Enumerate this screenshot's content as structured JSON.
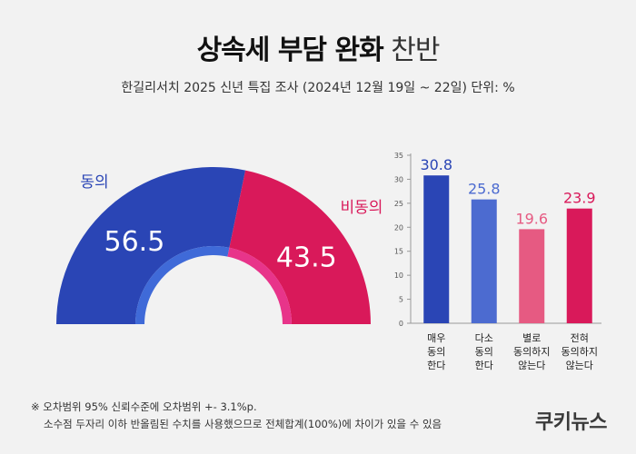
{
  "title": {
    "bold": "상속세 부담 완화",
    "light": "찬반"
  },
  "subtitle": "한길리서치 2025 신년 특집 조사 (2024년 12월 19일 ~ 22일) 단위: %",
  "colors": {
    "agree": "#2a45b5",
    "disagree": "#d9195a",
    "inner_agree": "#3f6ad8",
    "inner_disagree": "#e8348a",
    "bar_strong_agree": "#2a45b5",
    "bar_agree": "#4c6bd0",
    "bar_disagree": "#e65a82",
    "bar_strong_disagree": "#d9195a"
  },
  "chart_data": [
    {
      "type": "pie",
      "style": "half-donut",
      "categories": [
        "동의",
        "비동의"
      ],
      "values": [
        56.5,
        43.5
      ],
      "data_labels": [
        "56.5",
        "43.5"
      ]
    },
    {
      "type": "bar",
      "categories": [
        "매우\n동의\n한다",
        "다소\n동의\n한다",
        "별로\n동의하지\n않는다",
        "전혀\n동의하지\n않는다"
      ],
      "values": [
        30.8,
        25.8,
        19.6,
        23.9
      ],
      "data_labels": [
        "30.8",
        "25.8",
        "19.6",
        "23.9"
      ],
      "ylim": [
        0,
        35
      ],
      "yticks": [
        0,
        5,
        10,
        15,
        20,
        25,
        30,
        35
      ],
      "grid": false
    }
  ],
  "footnote": {
    "line1": "※ 오차범위 95% 신뢰수준에 오차범위 +- 3.1%p.",
    "line2": "소수점 두자리 이하 반올림된 수치를 사용했으므로 전체합계(100%)에 차이가 있을 수 있음"
  },
  "brand": "쿠키뉴스"
}
